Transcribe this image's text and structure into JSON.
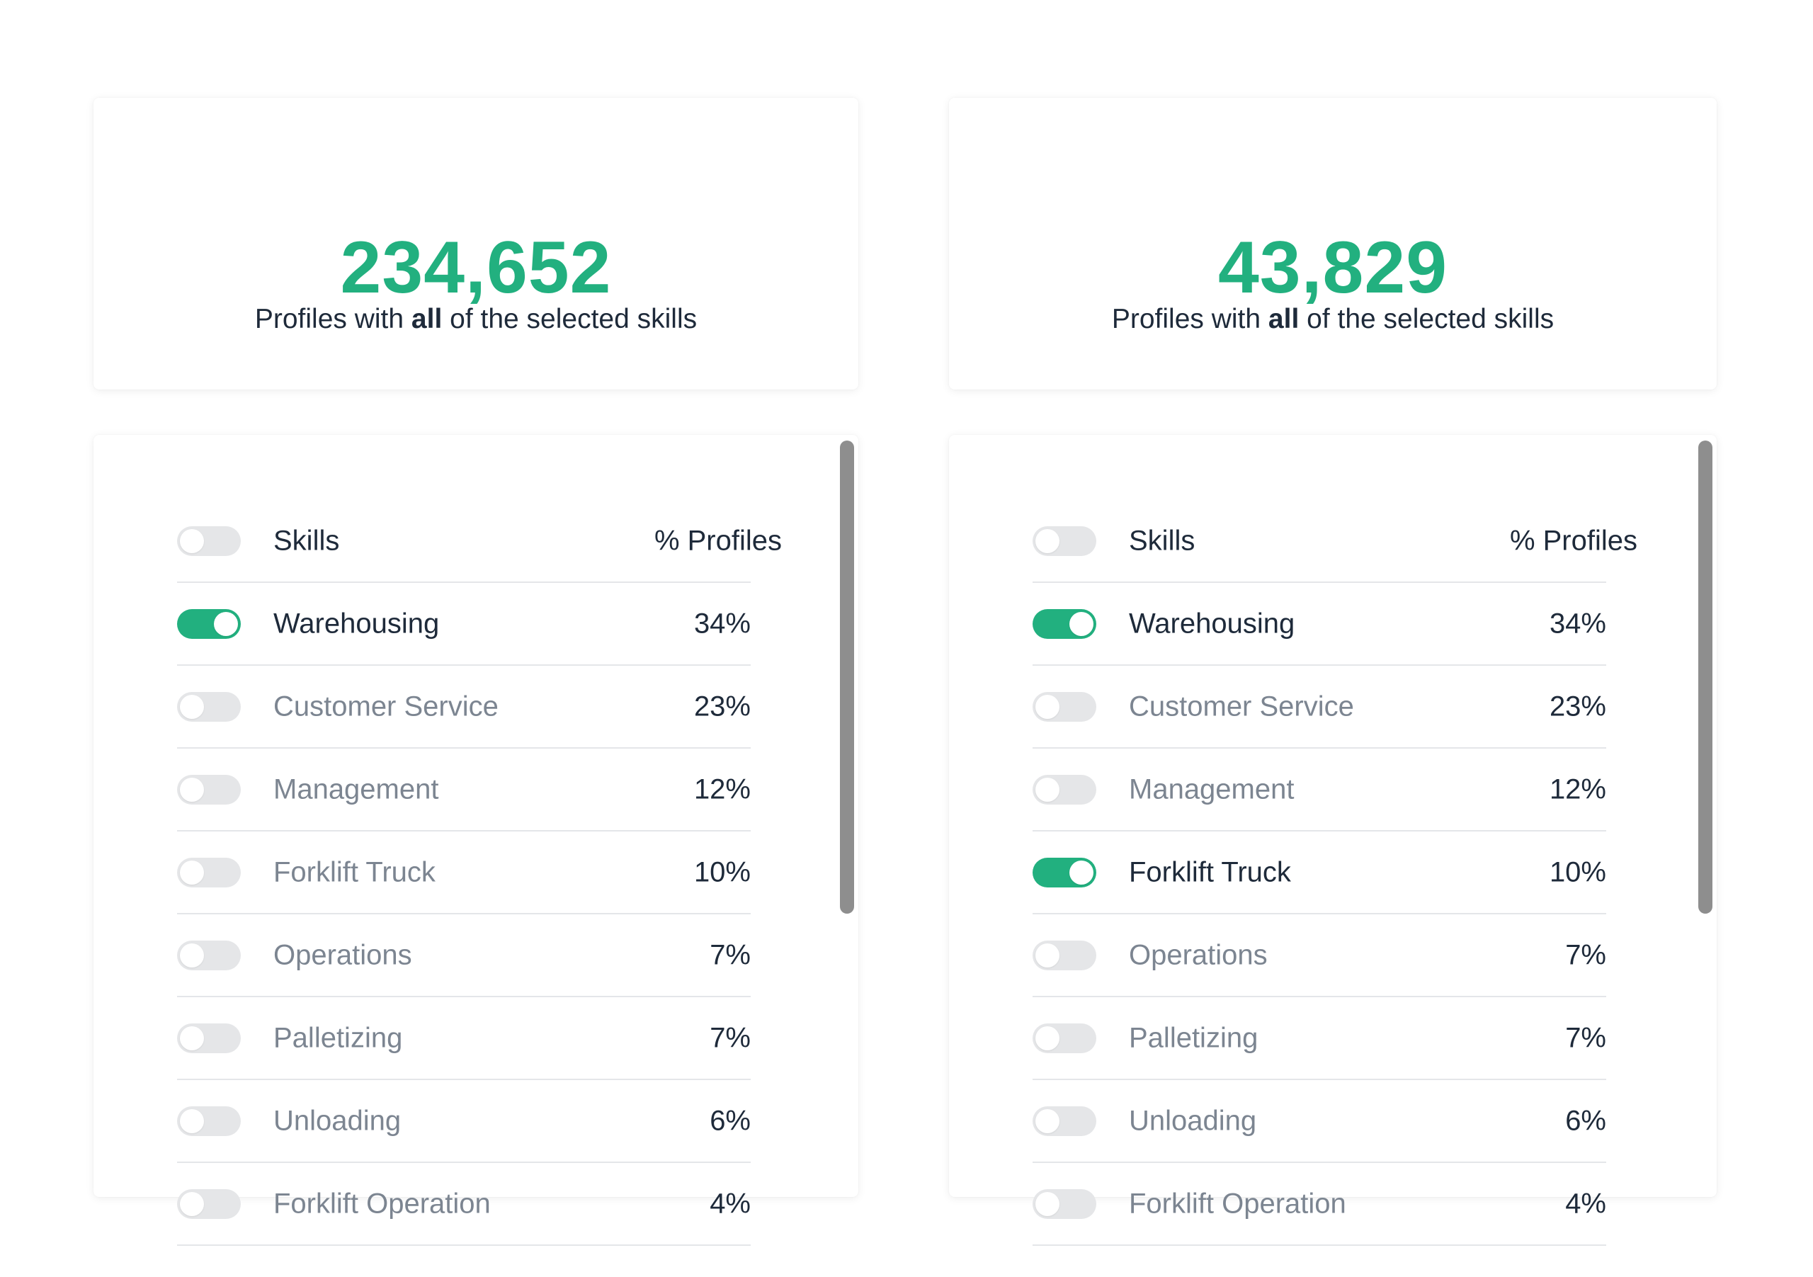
{
  "panels": [
    {
      "stat": {
        "value": "234,652",
        "label_pre": "Profiles with ",
        "label_bold": "all",
        "label_post": " of the selected skills"
      },
      "table": {
        "header": {
          "skill": "Skills",
          "percent": "% Profiles"
        },
        "rows": [
          {
            "skill": "Warehousing",
            "percent": "34%",
            "enabled": true
          },
          {
            "skill": "Customer Service",
            "percent": "23%",
            "enabled": false
          },
          {
            "skill": "Management",
            "percent": "12%",
            "enabled": false
          },
          {
            "skill": "Forklift Truck",
            "percent": "10%",
            "enabled": false
          },
          {
            "skill": "Operations",
            "percent": "7%",
            "enabled": false
          },
          {
            "skill": "Palletizing",
            "percent": "7%",
            "enabled": false
          },
          {
            "skill": "Unloading",
            "percent": "6%",
            "enabled": false
          },
          {
            "skill": "Forklift Operation",
            "percent": "4%",
            "enabled": false
          }
        ]
      }
    },
    {
      "stat": {
        "value": "43,829",
        "label_pre": "Profiles with ",
        "label_bold": "all",
        "label_post": " of the selected skills"
      },
      "table": {
        "header": {
          "skill": "Skills",
          "percent": "% Profiles"
        },
        "rows": [
          {
            "skill": "Warehousing",
            "percent": "34%",
            "enabled": true
          },
          {
            "skill": "Customer Service",
            "percent": "23%",
            "enabled": false
          },
          {
            "skill": "Management",
            "percent": "12%",
            "enabled": false
          },
          {
            "skill": "Forklift Truck",
            "percent": "10%",
            "enabled": true
          },
          {
            "skill": "Operations",
            "percent": "7%",
            "enabled": false
          },
          {
            "skill": "Palletizing",
            "percent": "7%",
            "enabled": false
          },
          {
            "skill": "Unloading",
            "percent": "6%",
            "enabled": false
          },
          {
            "skill": "Forklift Operation",
            "percent": "4%",
            "enabled": false
          }
        ]
      }
    }
  ],
  "colors": {
    "accent": "#22b07f",
    "text_dark": "#1e2a3a",
    "text_muted": "#7c8591",
    "toggle_off": "#e5e6e8",
    "scrollbar": "#8e8e8e"
  }
}
